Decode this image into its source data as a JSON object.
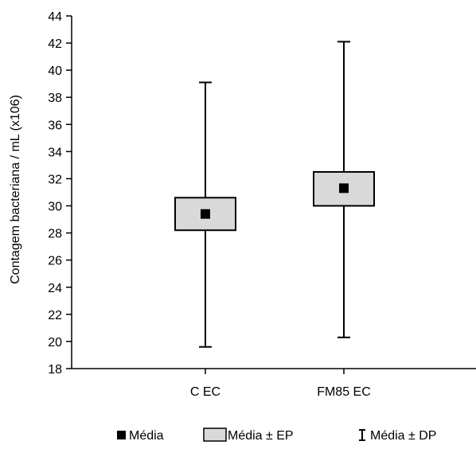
{
  "chart_data": {
    "type": "box",
    "ylabel": "Contagem bacteriana / mL (x106)",
    "ylim": [
      18,
      44
    ],
    "yticks": [
      18,
      20,
      22,
      24,
      26,
      28,
      30,
      32,
      34,
      36,
      38,
      40,
      42,
      44
    ],
    "categories": [
      "C EC",
      "FM85 EC"
    ],
    "series": [
      {
        "category": "C EC",
        "mean": 29.4,
        "se_low": 28.2,
        "se_high": 30.6,
        "sd_low": 19.6,
        "sd_high": 39.1
      },
      {
        "category": "FM85 EC",
        "mean": 31.3,
        "se_low": 30.0,
        "se_high": 32.5,
        "sd_low": 20.3,
        "sd_high": 42.1
      }
    ],
    "legend": {
      "position": "bottom",
      "mean_label": "Média",
      "se_label": "Média ± EP",
      "sd_label": "Média ± DP"
    },
    "colors": {
      "box_fill": "#d9d9d9",
      "mean_marker": "#000000",
      "axis": "#000000"
    }
  }
}
